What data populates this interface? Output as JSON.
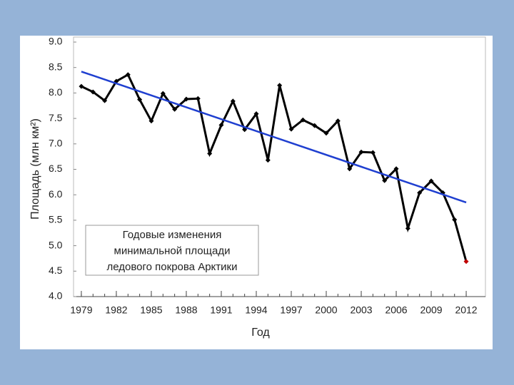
{
  "chart_data": {
    "type": "line",
    "ylabel": "Площадь (млн км²)",
    "xlabel": "Год",
    "annotation": [
      "Годовые изменения",
      "минимальной площади",
      "ледового покрова Арктики"
    ],
    "x": [
      1979,
      1980,
      1981,
      1982,
      1983,
      1984,
      1985,
      1986,
      1987,
      1988,
      1989,
      1990,
      1991,
      1992,
      1993,
      1994,
      1995,
      1996,
      1997,
      1998,
      1999,
      2000,
      2001,
      2002,
      2003,
      2004,
      2005,
      2006,
      2007,
      2008,
      2009,
      2010,
      2011,
      2012
    ],
    "series": [
      {
        "color": "#000000",
        "highlight_color": "#c00000",
        "values": [
          8.13,
          8.02,
          7.85,
          8.23,
          8.36,
          7.87,
          7.45,
          7.99,
          7.68,
          7.88,
          7.89,
          6.81,
          7.37,
          7.84,
          7.28,
          7.59,
          6.68,
          8.15,
          7.29,
          7.47,
          7.36,
          7.21,
          7.45,
          6.51,
          6.84,
          6.83,
          6.28,
          6.51,
          5.34,
          6.04,
          6.27,
          6.04,
          5.51,
          4.69
        ]
      }
    ],
    "trend": {
      "x": [
        1979,
        2012
      ],
      "values": [
        8.42,
        5.85
      ],
      "color": "#1f3fd0"
    },
    "xlim": [
      1978.33,
      2013.65
    ],
    "ylim": [
      4,
      9
    ],
    "xticks": [
      1979,
      1982,
      1985,
      1988,
      1991,
      1994,
      1997,
      2000,
      2003,
      2006,
      2009,
      2012
    ],
    "yticks": [
      {
        "value": 4,
        "label": "4.0"
      },
      {
        "value": 4.5,
        "label": "4.5"
      },
      {
        "value": 5,
        "label": "5.0"
      },
      {
        "value": 5.5,
        "label": "5.5"
      },
      {
        "value": 6,
        "label": "6.0"
      },
      {
        "value": 6.5,
        "label": "6.5"
      },
      {
        "value": 7,
        "label": "7.0"
      },
      {
        "value": 7.5,
        "label": "7.5"
      },
      {
        "value": 8,
        "label": "8.0"
      },
      {
        "value": 8.5,
        "label": "8.5"
      },
      {
        "value": 9,
        "label": "9.0"
      }
    ]
  }
}
